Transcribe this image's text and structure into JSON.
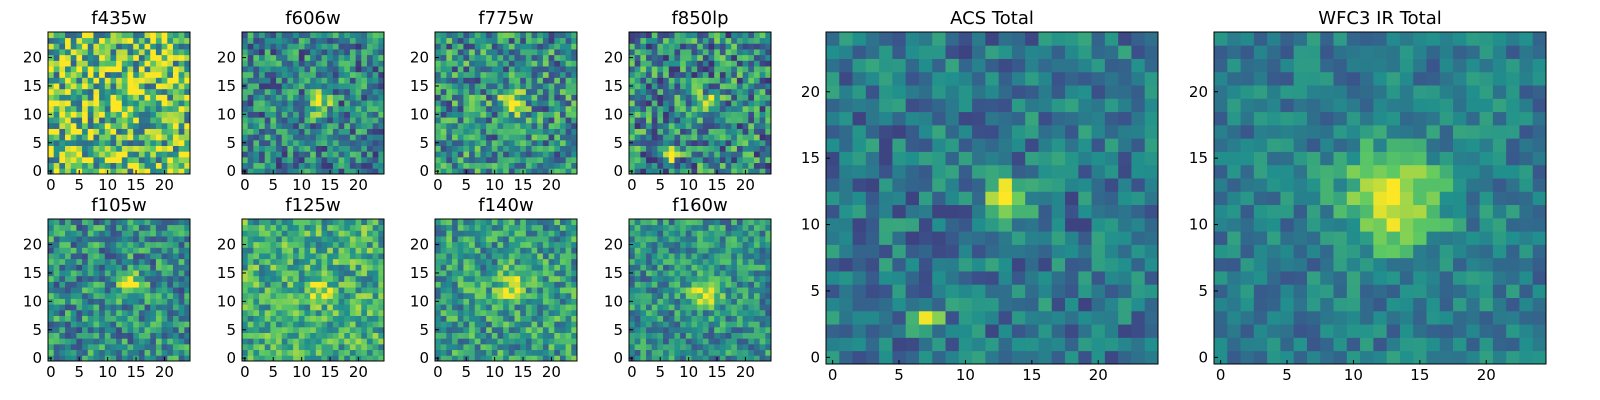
{
  "colormap": [
    "#440154",
    "#3b528b",
    "#21908d",
    "#5dc963",
    "#fde725"
  ],
  "chart_data": [
    {
      "type": "heatmap",
      "title": "f435w",
      "xlim": [
        0,
        24
      ],
      "ylim": [
        0,
        24
      ],
      "xticks": [
        0,
        5,
        10,
        15,
        20
      ],
      "yticks": [
        0,
        5,
        10,
        15,
        20
      ],
      "grid": false,
      "noise": 0.42,
      "base": 0.72,
      "peaks": [
        {
          "x": 12,
          "y": 12,
          "amp": 0.2,
          "sigma": 1.3
        }
      ]
    },
    {
      "type": "heatmap",
      "title": "f606w",
      "xlim": [
        0,
        24
      ],
      "ylim": [
        0,
        24
      ],
      "xticks": [
        0,
        5,
        10,
        15,
        20
      ],
      "yticks": [
        0,
        5,
        10,
        15,
        20
      ],
      "grid": false,
      "noise": 0.3,
      "base": 0.45,
      "peaks": [
        {
          "x": 13,
          "y": 12,
          "amp": 0.55,
          "sigma": 1.4
        }
      ]
    },
    {
      "type": "heatmap",
      "title": "f775w",
      "xlim": [
        0,
        24
      ],
      "ylim": [
        0,
        24
      ],
      "xticks": [
        0,
        5,
        10,
        15,
        20
      ],
      "yticks": [
        0,
        5,
        10,
        15,
        20
      ],
      "grid": false,
      "noise": 0.32,
      "base": 0.5,
      "peaks": [
        {
          "x": 13,
          "y": 12,
          "amp": 0.5,
          "sigma": 1.5
        }
      ]
    },
    {
      "type": "heatmap",
      "title": "f850lp",
      "xlim": [
        0,
        24
      ],
      "ylim": [
        0,
        24
      ],
      "xticks": [
        0,
        5,
        10,
        15,
        20
      ],
      "yticks": [
        0,
        5,
        10,
        15,
        20
      ],
      "grid": false,
      "noise": 0.34,
      "base": 0.48,
      "peaks": [
        {
          "x": 13,
          "y": 12,
          "amp": 0.4,
          "sigma": 1.3
        },
        {
          "x": 7,
          "y": 3,
          "amp": 0.55,
          "sigma": 0.8
        }
      ]
    },
    {
      "type": "heatmap",
      "title": "f105w",
      "xlim": [
        0,
        24
      ],
      "ylim": [
        0,
        24
      ],
      "xticks": [
        0,
        5,
        10,
        15,
        20
      ],
      "yticks": [
        0,
        5,
        10,
        15,
        20
      ],
      "grid": false,
      "noise": 0.28,
      "base": 0.5,
      "peaks": [
        {
          "x": 14,
          "y": 13,
          "amp": 0.45,
          "sigma": 1.6
        }
      ]
    },
    {
      "type": "heatmap",
      "title": "f125w",
      "xlim": [
        0,
        24
      ],
      "ylim": [
        0,
        24
      ],
      "xticks": [
        0,
        5,
        10,
        15,
        20
      ],
      "yticks": [
        0,
        5,
        10,
        15,
        20
      ],
      "grid": false,
      "noise": 0.26,
      "base": 0.62,
      "peaks": [
        {
          "x": 13,
          "y": 12,
          "amp": 0.35,
          "sigma": 1.6
        }
      ]
    },
    {
      "type": "heatmap",
      "title": "f140w",
      "xlim": [
        0,
        24
      ],
      "ylim": [
        0,
        24
      ],
      "xticks": [
        0,
        5,
        10,
        15,
        20
      ],
      "yticks": [
        0,
        5,
        10,
        15,
        20
      ],
      "grid": false,
      "noise": 0.26,
      "base": 0.55,
      "peaks": [
        {
          "x": 13,
          "y": 13,
          "amp": 0.4,
          "sigma": 1.8
        }
      ]
    },
    {
      "type": "heatmap",
      "title": "f160w",
      "xlim": [
        0,
        24
      ],
      "ylim": [
        0,
        24
      ],
      "xticks": [
        0,
        5,
        10,
        15,
        20
      ],
      "yticks": [
        0,
        5,
        10,
        15,
        20
      ],
      "grid": false,
      "noise": 0.24,
      "base": 0.5,
      "peaks": [
        {
          "x": 13,
          "y": 12,
          "amp": 0.5,
          "sigma": 1.8
        }
      ]
    },
    {
      "type": "heatmap",
      "title": "ACS Total",
      "xlim": [
        0,
        24
      ],
      "ylim": [
        0,
        24
      ],
      "xticks": [
        0,
        5,
        10,
        15,
        20
      ],
      "yticks": [
        0,
        5,
        10,
        15,
        20
      ],
      "grid": false,
      "noise": 0.2,
      "base": 0.4,
      "peaks": [
        {
          "x": 13,
          "y": 12,
          "amp": 0.65,
          "sigma": 1.1
        },
        {
          "x": 7,
          "y": 3,
          "amp": 0.6,
          "sigma": 0.7
        }
      ]
    },
    {
      "type": "heatmap",
      "title": "WFC3 IR Total",
      "xlim": [
        0,
        24
      ],
      "ylim": [
        0,
        24
      ],
      "xticks": [
        0,
        5,
        10,
        15,
        20
      ],
      "yticks": [
        0,
        5,
        10,
        15,
        20
      ],
      "grid": false,
      "noise": 0.16,
      "base": 0.42,
      "peaks": [
        {
          "x": 13,
          "y": 12,
          "amp": 0.6,
          "sigma": 2.6
        }
      ]
    }
  ]
}
